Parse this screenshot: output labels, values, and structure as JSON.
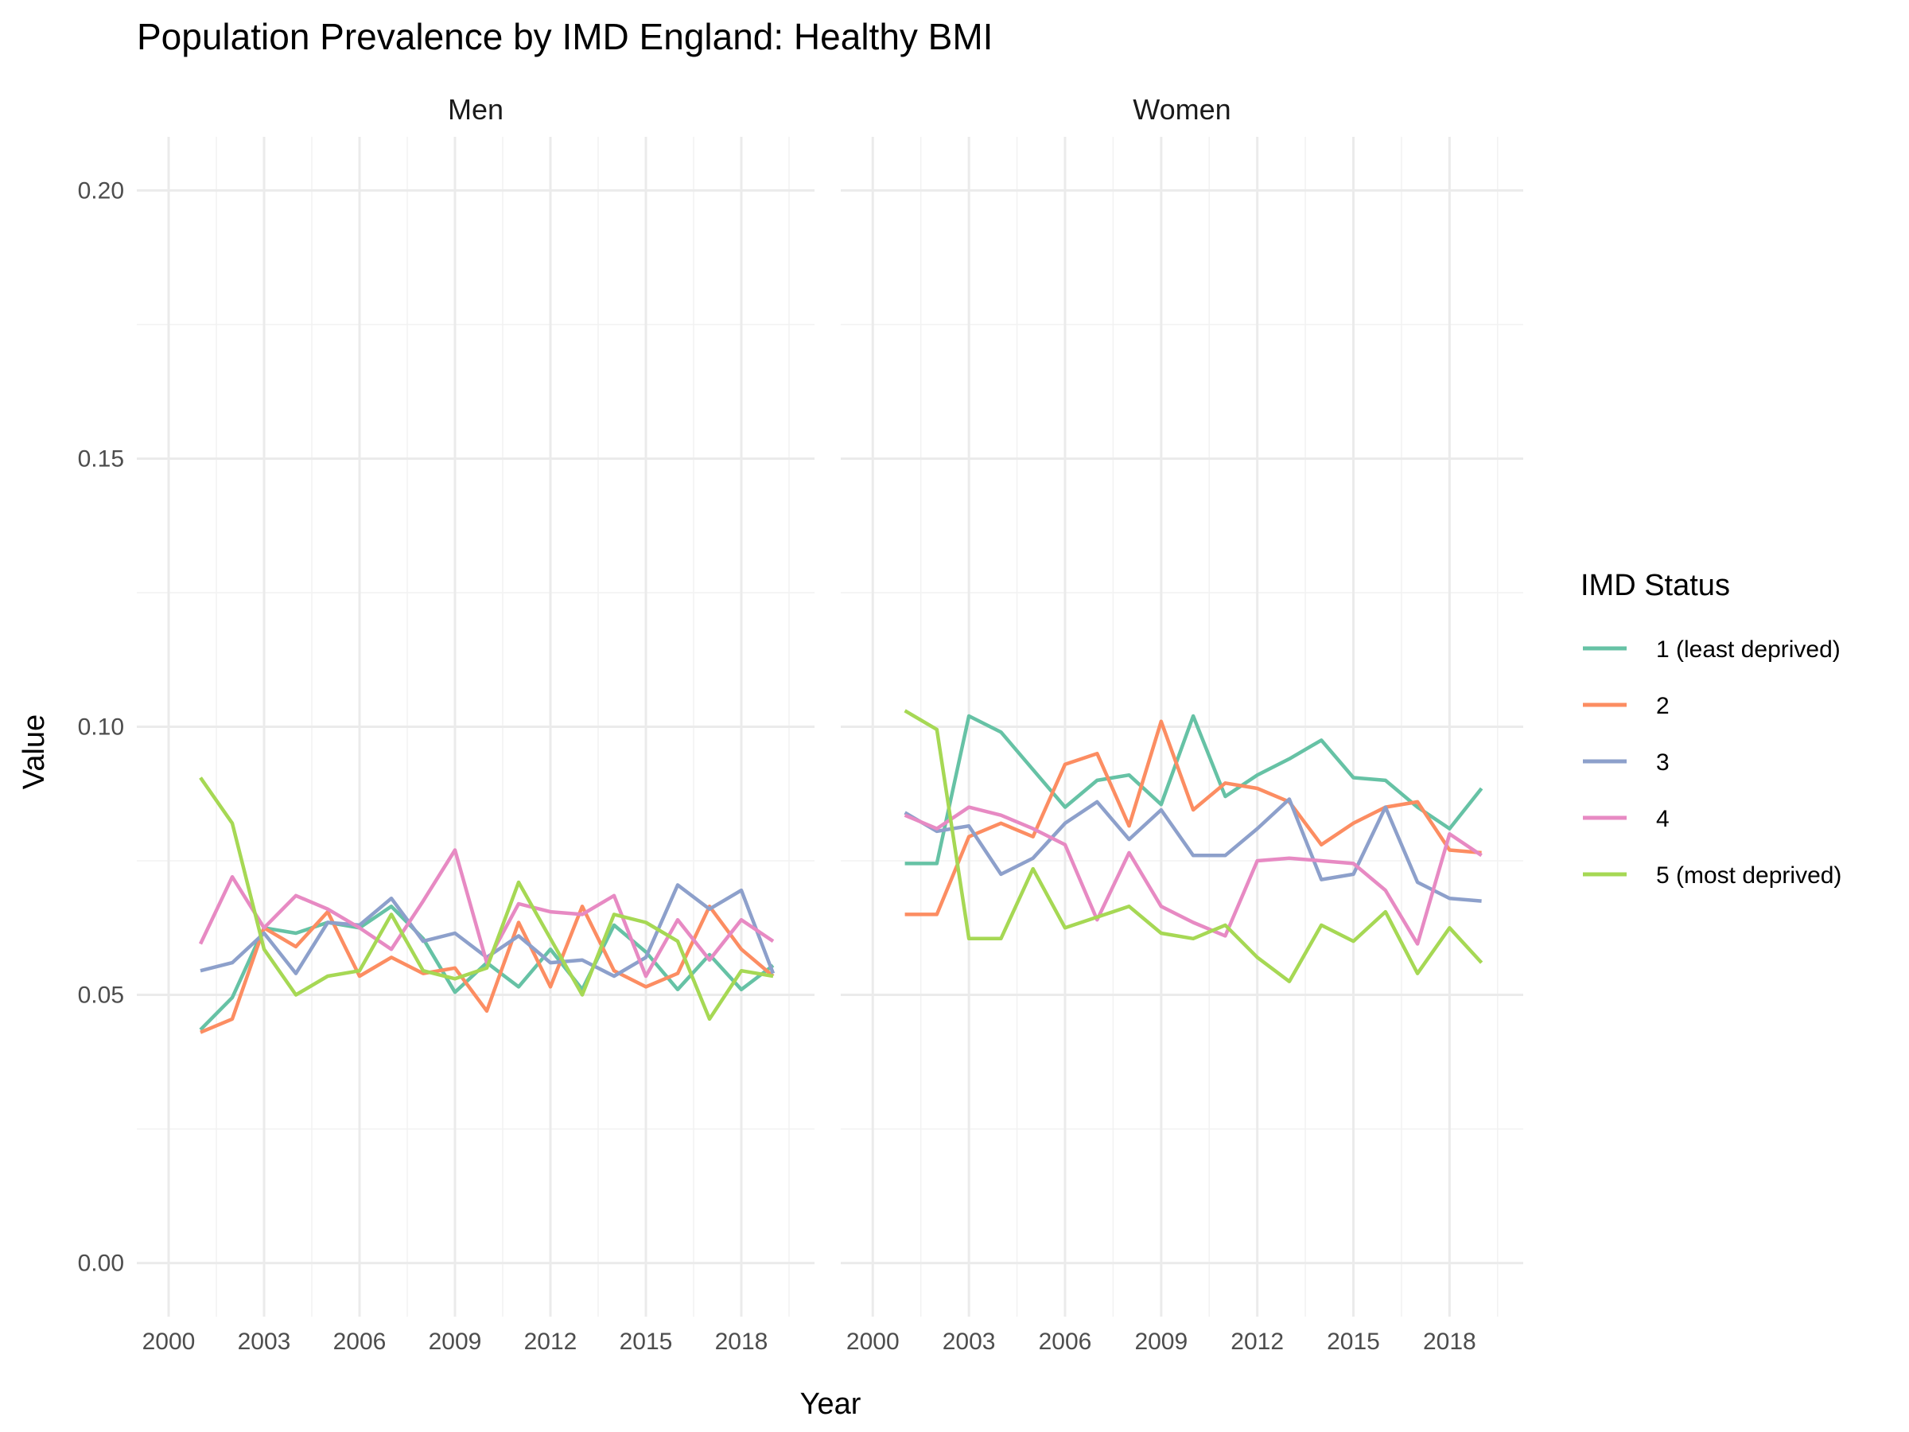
{
  "chart_data": {
    "type": "line",
    "title": "Population Prevalence by IMD England: Healthy BMI",
    "xlabel": "Year",
    "ylabel": "Value",
    "xlim": [
      1999,
      2020.3
    ],
    "ylim": [
      -0.01,
      0.21
    ],
    "x_ticks": [
      2000,
      2003,
      2006,
      2009,
      2012,
      2015,
      2018
    ],
    "y_ticks": [
      0.0,
      0.05,
      0.1,
      0.15,
      0.2
    ],
    "y_tick_labels": [
      "0.00",
      "0.05",
      "0.10",
      "0.15",
      "0.20"
    ],
    "grid": true,
    "legend_position": "right",
    "legend_title": "IMD Status",
    "x": [
      2001,
      2002,
      2003,
      2004,
      2005,
      2006,
      2007,
      2008,
      2009,
      2010,
      2011,
      2012,
      2013,
      2014,
      2015,
      2016,
      2017,
      2018,
      2019
    ],
    "series_styles": [
      {
        "name": "1 (least deprived)",
        "color": "#66c2a5"
      },
      {
        "name": "2",
        "color": "#fc8d62"
      },
      {
        "name": "3",
        "color": "#8da0cb"
      },
      {
        "name": "4",
        "color": "#e78ac3"
      },
      {
        "name": "5 (most deprived)",
        "color": "#a6d854"
      }
    ],
    "panels": [
      {
        "label": "Men",
        "series": [
          {
            "name": "1 (least deprived)",
            "values": [
              0.0435,
              0.0495,
              0.0625,
              0.0615,
              0.0635,
              0.0625,
              0.0665,
              0.0605,
              0.0505,
              0.056,
              0.0515,
              0.0585,
              0.051,
              0.063,
              0.058,
              0.051,
              0.0575,
              0.051,
              0.0555
            ]
          },
          {
            "name": "2",
            "values": [
              0.043,
              0.0455,
              0.0625,
              0.059,
              0.0655,
              0.0535,
              0.057,
              0.054,
              0.055,
              0.047,
              0.0635,
              0.0515,
              0.0665,
              0.0545,
              0.0515,
              0.054,
              0.0665,
              0.0585,
              0.0535
            ]
          },
          {
            "name": "3",
            "values": [
              0.0545,
              0.056,
              0.0615,
              0.054,
              0.0635,
              0.063,
              0.068,
              0.06,
              0.0615,
              0.057,
              0.061,
              0.056,
              0.0565,
              0.0535,
              0.057,
              0.0705,
              0.066,
              0.0695,
              0.054
            ]
          },
          {
            "name": "4",
            "values": [
              0.0595,
              0.072,
              0.0625,
              0.0685,
              0.066,
              0.0625,
              0.0585,
              0.0675,
              0.077,
              0.056,
              0.067,
              0.0655,
              0.065,
              0.0685,
              0.0535,
              0.064,
              0.0565,
              0.064,
              0.06
            ]
          },
          {
            "name": "5 (most deprived)",
            "values": [
              0.0905,
              0.082,
              0.0585,
              0.05,
              0.0535,
              0.0545,
              0.065,
              0.0545,
              0.053,
              0.055,
              0.071,
              0.0605,
              0.05,
              0.065,
              0.0635,
              0.06,
              0.0455,
              0.0545,
              0.0535
            ]
          }
        ]
      },
      {
        "label": "Women",
        "series": [
          {
            "name": "1 (least deprived)",
            "values": [
              0.0745,
              0.0745,
              0.102,
              0.099,
              0.092,
              0.085,
              0.09,
              0.091,
              0.0855,
              0.102,
              0.087,
              0.091,
              0.094,
              0.0975,
              0.0905,
              0.09,
              0.085,
              0.081,
              0.0885
            ]
          },
          {
            "name": "2",
            "values": [
              0.065,
              0.065,
              0.0795,
              0.082,
              0.0795,
              0.093,
              0.095,
              0.0815,
              0.101,
              0.0845,
              0.0895,
              0.0885,
              0.086,
              0.078,
              0.082,
              0.085,
              0.086,
              0.077,
              0.0765
            ]
          },
          {
            "name": "3",
            "values": [
              0.084,
              0.0805,
              0.0815,
              0.0725,
              0.0755,
              0.082,
              0.086,
              0.079,
              0.0845,
              0.076,
              0.076,
              0.081,
              0.0865,
              0.0715,
              0.0725,
              0.085,
              0.071,
              0.068,
              0.0675
            ]
          },
          {
            "name": "4",
            "values": [
              0.0835,
              0.081,
              0.085,
              0.0835,
              0.081,
              0.078,
              0.064,
              0.0765,
              0.0665,
              0.0635,
              0.061,
              0.075,
              0.0755,
              0.075,
              0.0745,
              0.0695,
              0.0595,
              0.08,
              0.076
            ]
          },
          {
            "name": "5 (most deprived)",
            "values": [
              0.103,
              0.0995,
              0.0605,
              0.0605,
              0.0735,
              0.0625,
              0.0645,
              0.0665,
              0.0615,
              0.0605,
              0.063,
              0.057,
              0.0525,
              0.063,
              0.06,
              0.0655,
              0.054,
              0.0625,
              0.056
            ]
          }
        ]
      }
    ]
  }
}
